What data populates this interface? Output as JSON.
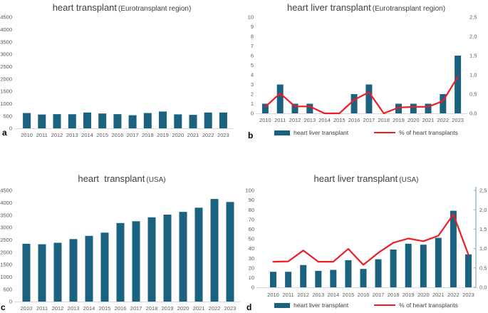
{
  "colors": {
    "bar": "#1b6180",
    "line": "#ee1c25",
    "tick_text": "#595959",
    "title_text": "#404040",
    "baseline": "#d9d9d9",
    "right_axis_line": "#7fa8c9"
  },
  "chart_data": [
    {
      "panel_letter": "a",
      "type": "bar",
      "title_main": "heart transplant",
      "title_suffix": "(Eurotransplant region)",
      "categories": [
        "2010",
        "2011",
        "2012",
        "2013",
        "2014",
        "2015",
        "2016",
        "2017",
        "2018",
        "2019",
        "2020",
        "2021",
        "2022",
        "2023"
      ],
      "series": [
        {
          "name": "heart transplant",
          "type": "bar",
          "axis": "left",
          "values": [
            620,
            560,
            575,
            570,
            640,
            600,
            575,
            530,
            620,
            680,
            565,
            545,
            640,
            640
          ]
        }
      ],
      "left_axis": {
        "min": 0,
        "max": 4500,
        "step": 500,
        "tick_labels": [
          "0",
          "500",
          "1000",
          "1500",
          "2000",
          "2500",
          "3000",
          "3500",
          "4000",
          "4500"
        ]
      },
      "grid": false,
      "legend": []
    },
    {
      "panel_letter": "b",
      "type": "bar+line",
      "title_main": "heart liver transplant",
      "title_suffix": "(Eurotransplant region)",
      "categories": [
        "2010",
        "2011",
        "2012",
        "2013",
        "2014",
        "2015",
        "2016",
        "2017",
        "2018",
        "2019",
        "2020",
        "2021",
        "2022",
        "2023"
      ],
      "series": [
        {
          "name": "heart liver transplant",
          "type": "bar",
          "axis": "left",
          "values": [
            1,
            3,
            1,
            1,
            0,
            0,
            2,
            3,
            0,
            1,
            1,
            1,
            2,
            6
          ]
        },
        {
          "name": "% of heart transplants",
          "type": "line",
          "axis": "right",
          "values": [
            0.17,
            0.52,
            0.18,
            0.18,
            0,
            0,
            0.35,
            0.55,
            0,
            0.15,
            0.17,
            0.17,
            0.32,
            0.95
          ]
        }
      ],
      "left_axis": {
        "min": 0,
        "max": 10,
        "step": 1,
        "tick_labels": [
          "0",
          "1",
          "2",
          "3",
          "4",
          "5",
          "6",
          "7",
          "8",
          "9",
          "10"
        ]
      },
      "right_axis": {
        "min": 0,
        "max": 2.5,
        "step": 0.5,
        "axis_line": false,
        "tick_labels": [
          "0,0",
          "0,5",
          "1,0",
          "1,5",
          "2,0",
          "2,5"
        ]
      },
      "grid": false,
      "legend": [
        {
          "label": "heart liver transplant",
          "swatch": "bar"
        },
        {
          "label": "% of heart transplants",
          "swatch": "line"
        }
      ]
    },
    {
      "panel_letter": "c",
      "type": "bar",
      "title_main": "heart  transplant",
      "title_suffix": "(USA)",
      "categories": [
        "2010",
        "2011",
        "2012",
        "2013",
        "2014",
        "2015",
        "2016",
        "2017",
        "2018",
        "2019",
        "2020",
        "2021",
        "2022",
        "2023"
      ],
      "series": [
        {
          "name": "heart transplant",
          "type": "bar",
          "axis": "left",
          "values": [
            2340,
            2320,
            2380,
            2530,
            2660,
            2790,
            3180,
            3250,
            3410,
            3520,
            3630,
            3800,
            4150,
            4030
          ]
        }
      ],
      "left_axis": {
        "min": 0,
        "max": 4500,
        "step": 500,
        "tick_labels": [
          "0",
          "500",
          "1000",
          "1500",
          "2000",
          "2500",
          "3000",
          "3500",
          "4000",
          "4500"
        ]
      },
      "grid": false,
      "legend": []
    },
    {
      "panel_letter": "d",
      "type": "bar+line",
      "title_main": "heart liver transplant",
      "title_suffix": "(USA)",
      "categories": [
        "2010",
        "2011",
        "2012",
        "2013",
        "2014",
        "2015",
        "2016",
        "2017",
        "2018",
        "2019",
        "2020",
        "2021",
        "2022",
        "2023"
      ],
      "series": [
        {
          "name": "heart liver transplant",
          "type": "bar",
          "axis": "left",
          "values": [
            16,
            16,
            23,
            17,
            18,
            28,
            19,
            29,
            39,
            45,
            44,
            51,
            79,
            34
          ]
        },
        {
          "name": "% of heart transplants",
          "type": "line",
          "axis": "right",
          "values": [
            0.66,
            0.67,
            0.95,
            0.66,
            0.66,
            0.99,
            0.58,
            0.89,
            1.15,
            1.26,
            1.19,
            1.33,
            1.88,
            0.84
          ]
        }
      ],
      "left_axis": {
        "min": 0,
        "max": 100,
        "step": 10,
        "tick_labels": [
          "0",
          "10",
          "20",
          "30",
          "40",
          "50",
          "60",
          "70",
          "80",
          "90",
          "100"
        ]
      },
      "right_axis": {
        "min": 0,
        "max": 2.5,
        "step": 0.5,
        "axis_line": true,
        "tick_labels": [
          "0,0",
          "0,5",
          "1,0",
          "1,5",
          "2,0",
          "2,5"
        ]
      },
      "grid": false,
      "legend": [
        {
          "label": "heart liver transplant",
          "swatch": "bar"
        },
        {
          "label": "% of heart transplants",
          "swatch": "line"
        }
      ]
    }
  ]
}
